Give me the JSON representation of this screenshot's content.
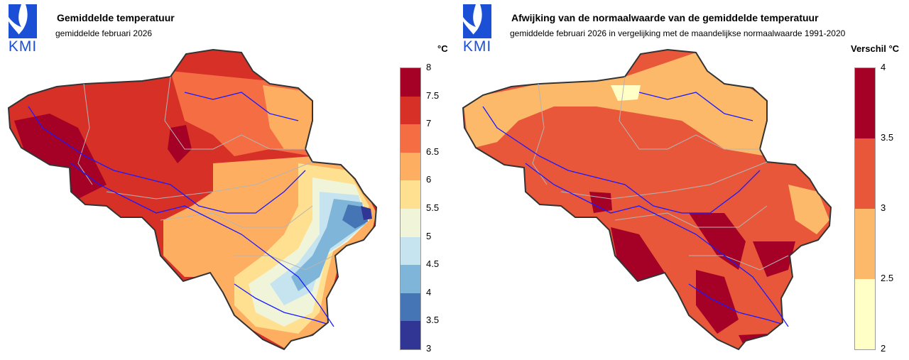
{
  "left": {
    "logo_text": "KMI",
    "title": "Gemiddelde temperatuur",
    "subtitle": "gemiddelde februari 2026",
    "unit": "°C",
    "legend": {
      "ticks": [
        "8",
        "7.5",
        "7",
        "6.5",
        "6",
        "5.5",
        "5",
        "4.5",
        "4",
        "3.5",
        "3"
      ],
      "colors": [
        "#a50026",
        "#d73027",
        "#f46d43",
        "#fdae61",
        "#fee090",
        "#f0f5da",
        "#c6e3f0",
        "#7fb5d8",
        "#4575b4",
        "#313695"
      ]
    }
  },
  "right": {
    "logo_text": "KMI",
    "title": "Afwijking van de normaalwaarde van de gemiddelde temperatuur",
    "subtitle": "gemiddelde februari 2026 in vergelijking met de maandelijkse normaalwaarde 1991-2020",
    "unit": "Verschil °C",
    "legend": {
      "ticks": [
        "4",
        "3.5",
        "3",
        "2.5",
        "2"
      ],
      "colors": [
        "#a50026",
        "#e9573a",
        "#fdb96a",
        "#ffffc6"
      ]
    }
  },
  "colors": {
    "logo_blue": "#1a4fd6",
    "river": "#1a1aff",
    "border": "#333333",
    "province": "#b5b5b5"
  }
}
